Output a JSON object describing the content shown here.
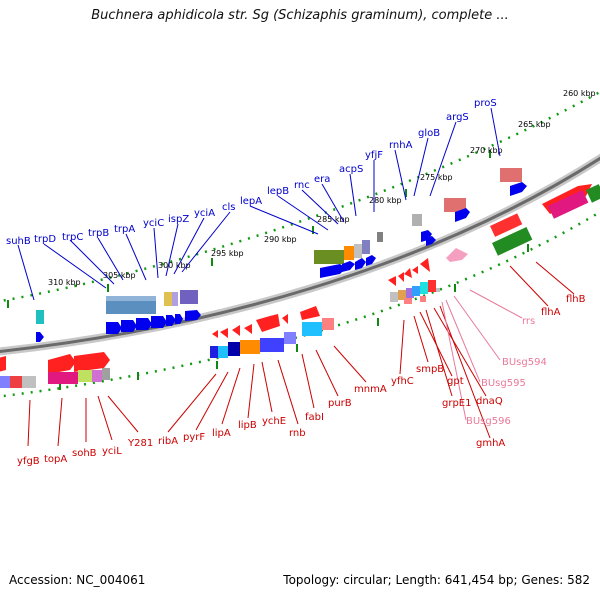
{
  "title": "Buchnera aphidicola str. Sg (Schizaphis graminum), complete ...",
  "footer": {
    "accession": "Accession: NC_004061",
    "topology": "Topology: circular; Length: 641,454 bp; Genes: 582"
  },
  "kbp_labels": [
    "310 kbp",
    "305 kbp",
    "300 kbp",
    "295 kbp",
    "290 kbp",
    "285 kbp",
    "280 kbp",
    "275 kbp",
    "270 kbp",
    "265 kbp",
    "260 kbp"
  ],
  "forward_genes": [
    "suhB",
    "trpD",
    "trpC",
    "trpB",
    "trpA",
    "yciC",
    "ispZ",
    "yciA",
    "cls",
    "lepA",
    "lepB",
    "rnc",
    "era",
    "acpS",
    "yfjF",
    "rnhA",
    "gloB",
    "argS",
    "proS"
  ],
  "reverse_genes": [
    "yfgB",
    "topA",
    "sohB",
    "yciL",
    "Y281",
    "ribA",
    "pyrF",
    "lipA",
    "lipB",
    "ychE",
    "rnb",
    "fabI",
    "purB",
    "mnmA",
    "yfhC",
    "smpB",
    "gpt",
    "grpE1",
    "dnaQ",
    "gmhA",
    "flhA",
    "flhB"
  ],
  "rna_genes": [
    "BUsg594",
    "BUsg595",
    "BUsg596",
    "rrs"
  ],
  "colors": {
    "forward_label": "#0000cc",
    "reverse_label": "#cc0000",
    "rna_label": "#e87a9a",
    "backbone": "#808080",
    "tick": "#118811"
  }
}
